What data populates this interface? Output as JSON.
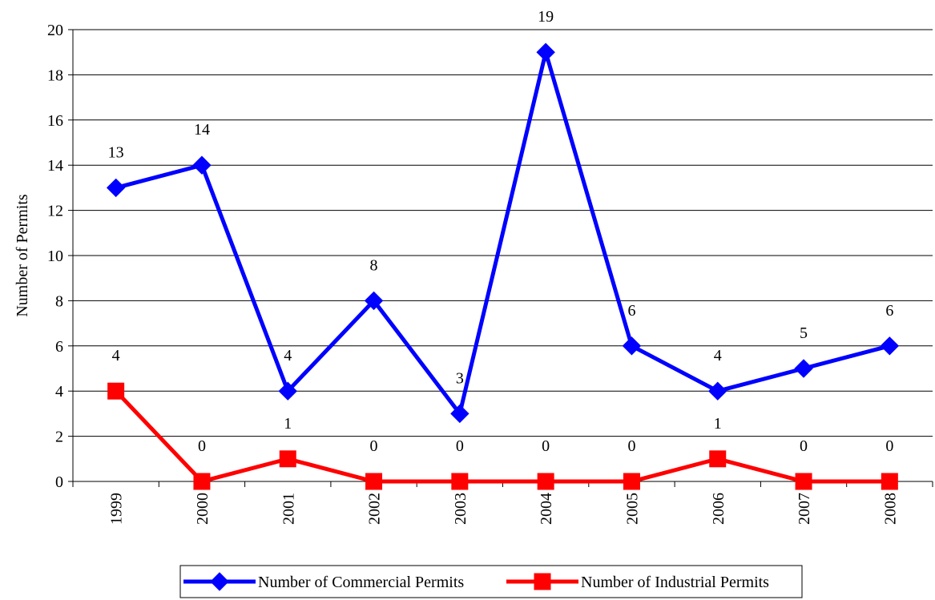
{
  "chart_data": {
    "type": "line",
    "title": "",
    "xlabel": "",
    "ylabel": "Number of Permits",
    "categories": [
      "1999",
      "2000",
      "2001",
      "2002",
      "2003",
      "2004",
      "2005",
      "2006",
      "2007",
      "2008"
    ],
    "ylim": [
      0,
      20
    ],
    "yticks": [
      "0",
      "2",
      "4",
      "6",
      "8",
      "10",
      "12",
      "14",
      "16",
      "18",
      "20"
    ],
    "grid": "horizontal",
    "legend_position": "bottom",
    "series": [
      {
        "name": "Number of Commercial Permits",
        "values": [
          13,
          14,
          4,
          8,
          3,
          19,
          6,
          4,
          5,
          6
        ],
        "labels": [
          "13",
          "14",
          "4",
          "8",
          "3",
          "19",
          "6",
          "4",
          "5",
          "6"
        ],
        "color": "#0000ff",
        "marker": "diamond"
      },
      {
        "name": "Number of Industrial Permits",
        "values": [
          4,
          0,
          1,
          0,
          0,
          0,
          0,
          1,
          0,
          0
        ],
        "labels": [
          "4",
          "0",
          "1",
          "0",
          "0",
          "0",
          "0",
          "1",
          "0",
          "0"
        ],
        "color": "#ff0000",
        "marker": "square"
      }
    ]
  }
}
